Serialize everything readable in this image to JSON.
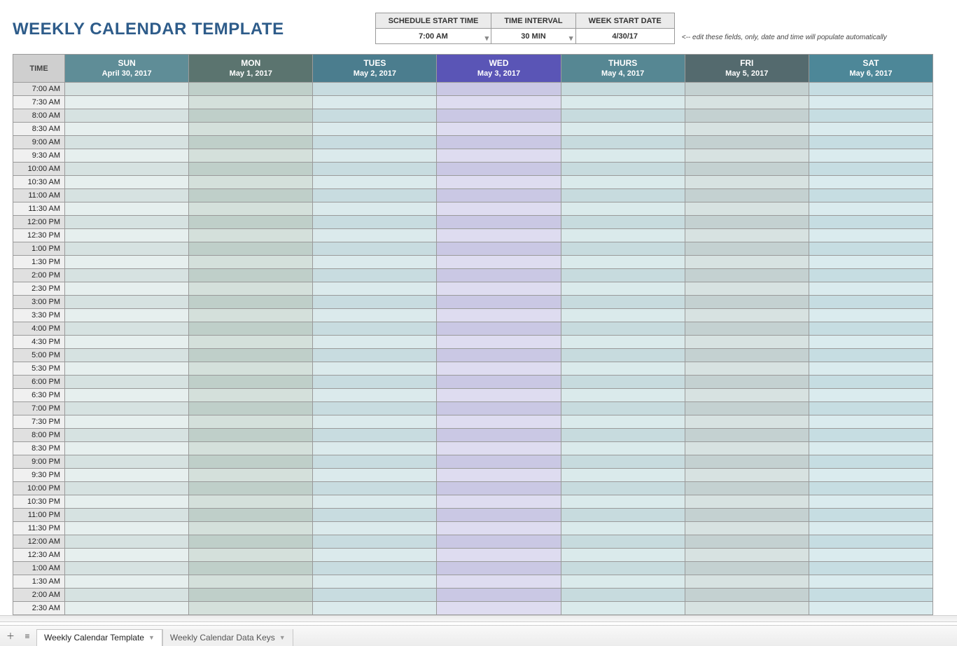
{
  "title": "WEEKLY CALENDAR TEMPLATE",
  "config": {
    "headers": [
      "SCHEDULE START TIME",
      "TIME INTERVAL",
      "WEEK START DATE"
    ],
    "values": [
      "7:00 AM",
      "30 MIN",
      "4/30/17"
    ],
    "hint": "<-- edit these fields, only, date and time will populate automatically"
  },
  "calendar": {
    "time_header": "TIME",
    "time_col_bg": {
      "even": "#e0e0e0",
      "odd": "#f0f0f0"
    },
    "day_columns": [
      {
        "dow": "SUN",
        "date": "April 30, 2017",
        "head_bg": "#5f8d97",
        "cell_even": "#d6e2e1",
        "cell_odd": "#e6efee"
      },
      {
        "dow": "MON",
        "date": "May 1, 2017",
        "head_bg": "#5b746f",
        "cell_even": "#bfcfc9",
        "cell_odd": "#d4e0db"
      },
      {
        "dow": "TUES",
        "date": "May 2, 2017",
        "head_bg": "#4b7d8e",
        "cell_even": "#c8dce0",
        "cell_odd": "#dbeaec"
      },
      {
        "dow": "WED",
        "date": "May 3, 2017",
        "head_bg": "#5a55b6",
        "cell_even": "#cac8e4",
        "cell_odd": "#dedcf0"
      },
      {
        "dow": "THURS",
        "date": "May 4, 2017",
        "head_bg": "#568793",
        "cell_even": "#c7dbde",
        "cell_odd": "#daeaeb"
      },
      {
        "dow": "FRI",
        "date": "May 5, 2017",
        "head_bg": "#546a6e",
        "cell_even": "#c4d1d1",
        "cell_odd": "#d7e2e1"
      },
      {
        "dow": "SAT",
        "date": "May 6, 2017",
        "head_bg": "#4d8798",
        "cell_even": "#c6dde2",
        "cell_odd": "#daebee"
      }
    ],
    "times": [
      "7:00 AM",
      "7:30 AM",
      "8:00 AM",
      "8:30 AM",
      "9:00 AM",
      "9:30 AM",
      "10:00 AM",
      "10:30 AM",
      "11:00 AM",
      "11:30 AM",
      "12:00 PM",
      "12:30 PM",
      "1:00 PM",
      "1:30 PM",
      "2:00 PM",
      "2:30 PM",
      "3:00 PM",
      "3:30 PM",
      "4:00 PM",
      "4:30 PM",
      "5:00 PM",
      "5:30 PM",
      "6:00 PM",
      "6:30 PM",
      "7:00 PM",
      "7:30 PM",
      "8:00 PM",
      "8:30 PM",
      "9:00 PM",
      "9:30 PM",
      "10:00 PM",
      "10:30 PM",
      "11:00 PM",
      "11:30 PM",
      "12:00 AM",
      "12:30 AM",
      "1:00 AM",
      "1:30 AM",
      "2:00 AM",
      "2:30 AM"
    ]
  },
  "tabs": {
    "active": "Weekly Calendar Template",
    "other": "Weekly Calendar Data Keys"
  }
}
